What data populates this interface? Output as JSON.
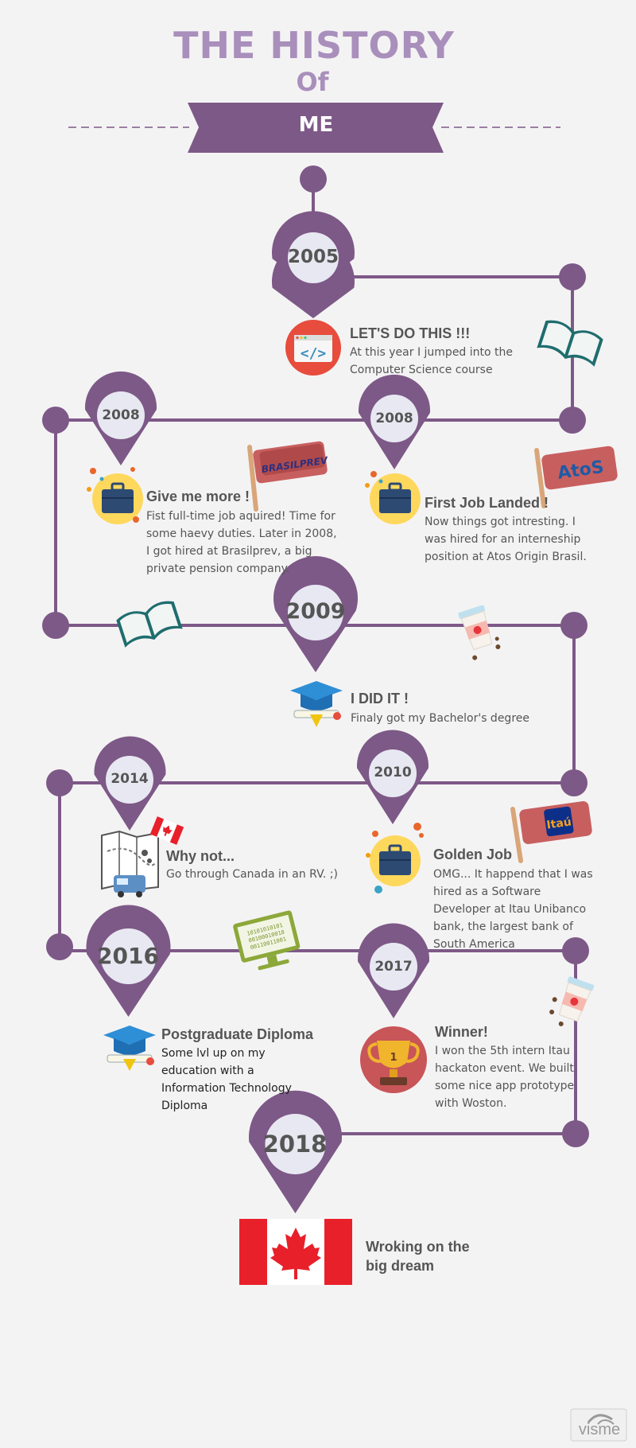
{
  "title": {
    "line1": "THE HISTORY",
    "line2": "Of",
    "banner": "ME"
  },
  "events": [
    {
      "year": "2005",
      "heading": "LET'S DO THIS !!!",
      "text": "At this year I jumped into the Computer Science course"
    },
    {
      "year": "2008",
      "heading": "Give me more !",
      "text": "Fist full-time job aquired! Time for some haevy duties. Later in 2008, I got hired at Brasilprev, a big private pension company."
    },
    {
      "year": "2008",
      "heading": "First Job Landed !",
      "text": "Now things got intresting. I was hired for an interneship position at Atos Origin Brasil."
    },
    {
      "year": "2009",
      "heading": "I DID IT !",
      "text": "Finaly got my Bachelor's degree"
    },
    {
      "year": "2014",
      "heading": "Why not...",
      "text": "Go through Canada in an RV.  ;)"
    },
    {
      "year": "2010",
      "heading": "Golden Job",
      "text": "OMG... It happend that I was hired as a Software Developer at Itau Unibanco bank, the largest bank of South America"
    },
    {
      "year": "2016",
      "heading": "Postgraduate Diploma",
      "text": "Some lvl up on my education with a Information Technology Diploma"
    },
    {
      "year": "2017",
      "heading": "Winner!",
      "text": "I won the 5th intern Itau hackaton event. We built some nice app prototype with Woston."
    },
    {
      "year": "2018",
      "heading": "Wroking on the big dream",
      "text": ""
    }
  ],
  "logos": {
    "brasilprev": "BRASILPREV",
    "atos": "AtoS",
    "itau": "Itaú",
    "trophy_rank": "1",
    "binary": [
      "10101010101",
      "00100010010",
      "00110011001"
    ]
  },
  "brand": {
    "name": "visme"
  },
  "colors": {
    "purple": "#7d5987",
    "light_purple": "#a98fbb",
    "pin_inner": "#e8e8f2",
    "background": "#f4f3f4",
    "canada_red": "#e8202a",
    "atos_red": "#c85f5f",
    "code_red": "#e74c3c",
    "briefcase_yellow": "#fdd85d",
    "book_teal": "#1f6d6e",
    "grad_blue": "#2e8fd6",
    "trophy_red": "#c85558",
    "binary_green": "#8ca83a"
  },
  "icons": [
    "code-window-icon",
    "open-book-icon",
    "briefcase-icon",
    "brasilprev-flag-icon",
    "atos-flag-icon",
    "coffee-cup-icon",
    "graduation-cap-icon",
    "map-rv-icon",
    "canada-flag-small-icon",
    "itau-flag-icon",
    "computer-binary-icon",
    "trophy-icon",
    "canada-flag-icon",
    "visme-logo-icon"
  ]
}
